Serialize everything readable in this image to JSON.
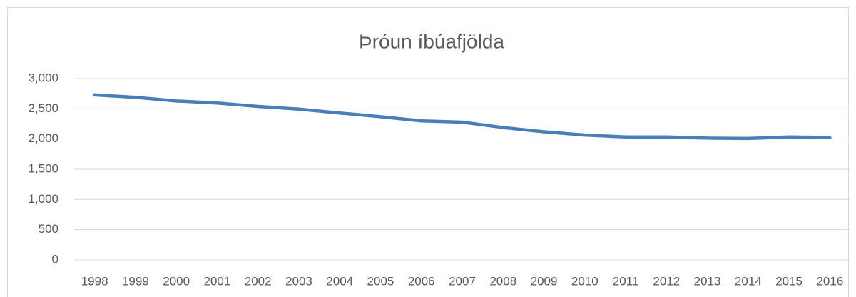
{
  "chart_data": {
    "type": "line",
    "title": "Þróun íbúafjölda",
    "categories": [
      "1998",
      "1999",
      "2000",
      "2001",
      "2002",
      "2003",
      "2004",
      "2005",
      "2006",
      "2007",
      "2008",
      "2009",
      "2010",
      "2011",
      "2012",
      "2013",
      "2014",
      "2015",
      "2016"
    ],
    "series": [
      {
        "color": "#4a7ebb",
        "values": [
          2730,
          2690,
          2630,
          2595,
          2540,
          2495,
          2430,
          2370,
          2300,
          2280,
          2190,
          2120,
          2065,
          2035,
          2035,
          2015,
          2010,
          2035,
          2025
        ]
      }
    ],
    "ylim": [
      0,
      3000
    ],
    "yticks": [
      0,
      500,
      {
        "value": 1000,
        "label": "1,000"
      },
      {
        "value": 1500,
        "label": "1,500"
      },
      {
        "value": 2000,
        "label": "2,000"
      },
      {
        "value": 2500,
        "label": "2,500"
      },
      {
        "value": 3000,
        "label": "3,000"
      }
    ],
    "grid": true
  }
}
